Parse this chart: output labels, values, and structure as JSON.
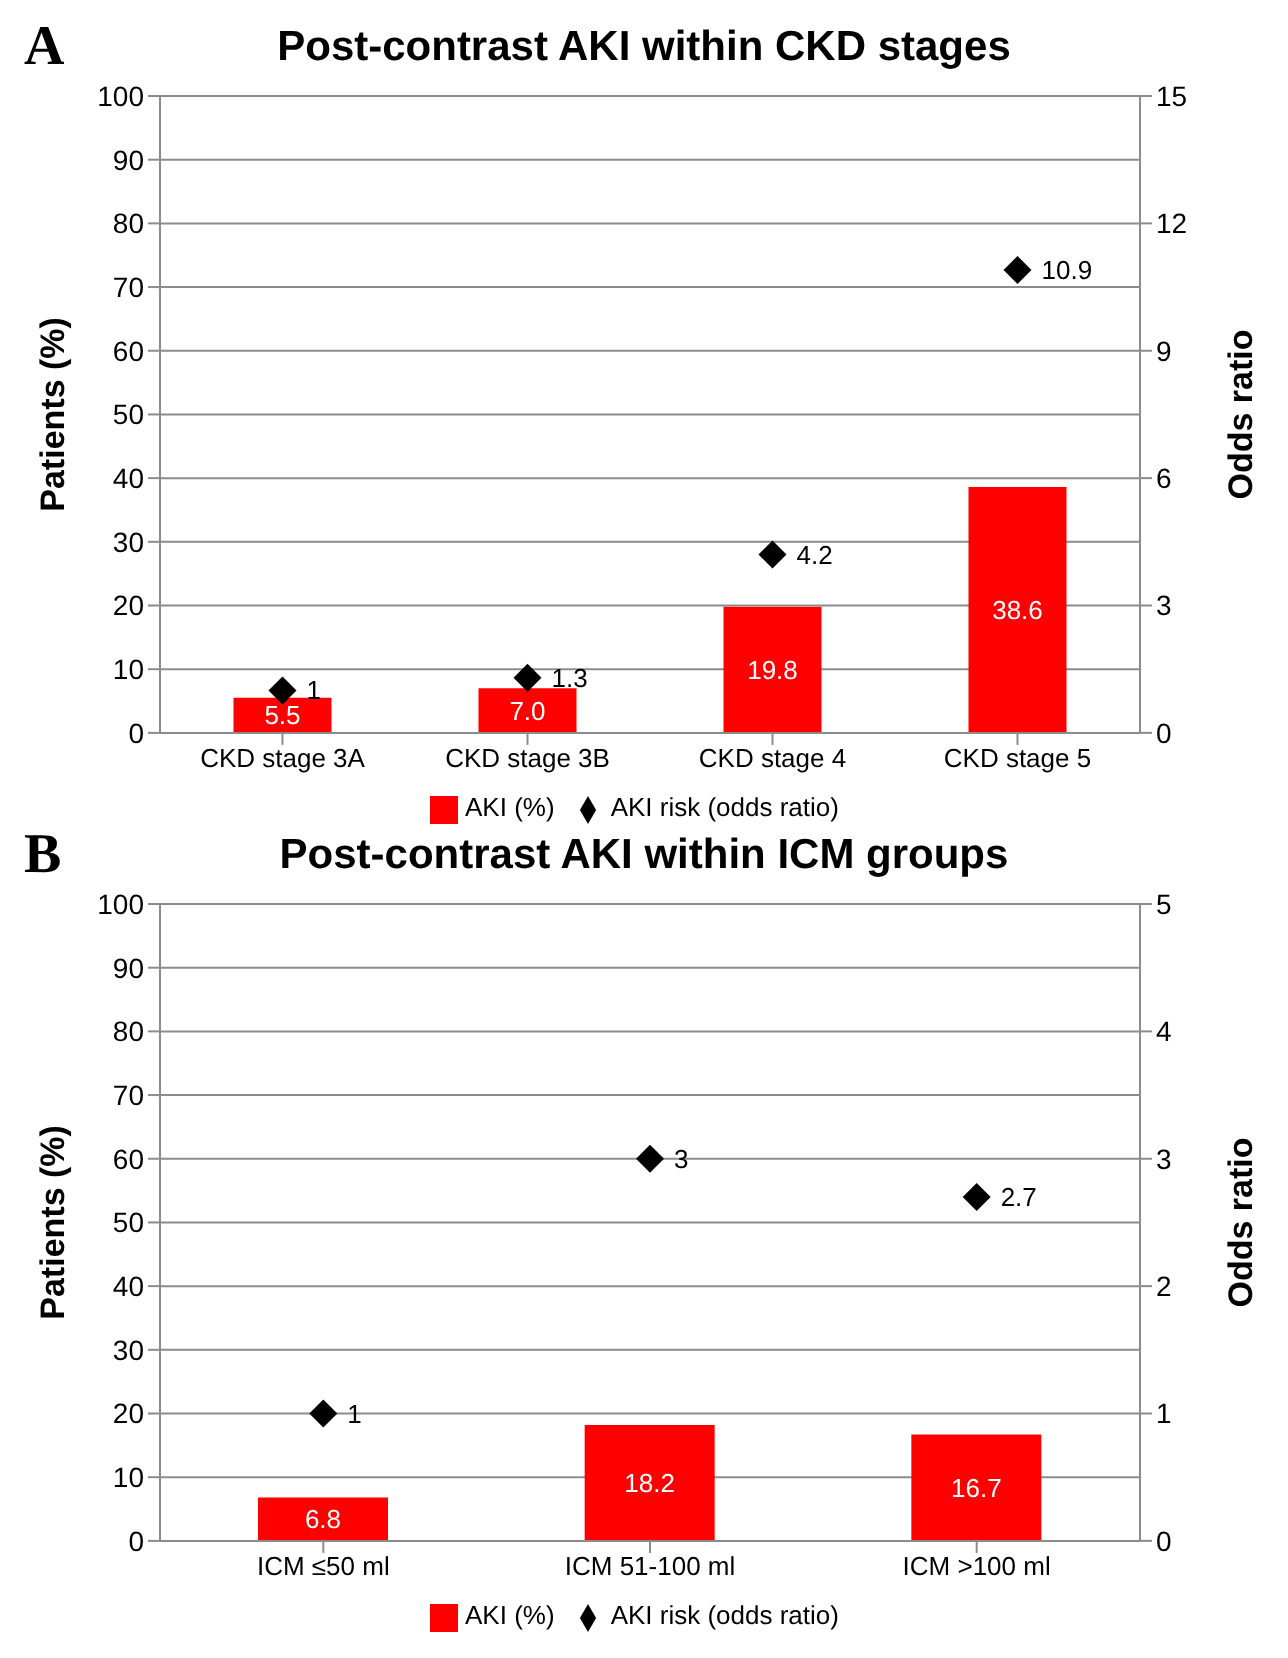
{
  "chart_data": [
    {
      "type": "bar",
      "title": "Post-contrast AKI within CKD stages",
      "annotations": [
        "A"
      ],
      "ylabel": "Patients (%)",
      "y2label": "Odds ratio",
      "categories": [
        "CKD stage 3A",
        "CKD stage 3B",
        "CKD stage 4",
        "CKD stage 5"
      ],
      "series": [
        {
          "name": "AKI (%)",
          "color": "#ff0000",
          "values": [
            5.5,
            7.0,
            19.8,
            38.6
          ],
          "value_labels": [
            "5.5",
            "7.0",
            "19.8",
            "38.6"
          ]
        },
        {
          "name": "AKI risk (odds ratio)",
          "type": "scatter",
          "axis": "y2",
          "color": "#000000",
          "values": [
            1,
            1.3,
            4.2,
            10.9
          ],
          "value_labels": [
            "1",
            "1.3",
            "4.2",
            "10.9"
          ]
        }
      ],
      "ylim": [
        0,
        100
      ],
      "yticks": [
        0,
        10,
        20,
        30,
        40,
        50,
        60,
        70,
        80,
        90,
        100
      ],
      "y2lim": [
        0,
        15
      ],
      "y2ticks": [
        0,
        3,
        6,
        9,
        12,
        15
      ],
      "grid": "y",
      "legend": "bottom",
      "marker": "diamond"
    },
    {
      "type": "bar",
      "title": "Post-contrast AKI within ICM groups",
      "annotations": [
        "B"
      ],
      "ylabel": "Patients (%)",
      "y2label": "Odds ratio",
      "categories": [
        "ICM ≤50 ml",
        "ICM 51-100 ml",
        "ICM >100 ml"
      ],
      "series": [
        {
          "name": "AKI (%)",
          "color": "#ff0000",
          "values": [
            6.8,
            18.2,
            16.7
          ],
          "value_labels": [
            "6.8",
            "18.2",
            "16.7"
          ]
        },
        {
          "name": "AKI risk (odds ratio)",
          "type": "scatter",
          "axis": "y2",
          "color": "#000000",
          "values": [
            1,
            3,
            2.7
          ],
          "value_labels": [
            "1",
            "3",
            "2.7"
          ]
        }
      ],
      "ylim": [
        0,
        100
      ],
      "yticks": [
        0,
        10,
        20,
        30,
        40,
        50,
        60,
        70,
        80,
        90,
        100
      ],
      "y2lim": [
        0,
        5
      ],
      "y2ticks": [
        0,
        1,
        2,
        3,
        4,
        5
      ],
      "grid": "y",
      "legend": "bottom",
      "marker": "diamond"
    }
  ]
}
